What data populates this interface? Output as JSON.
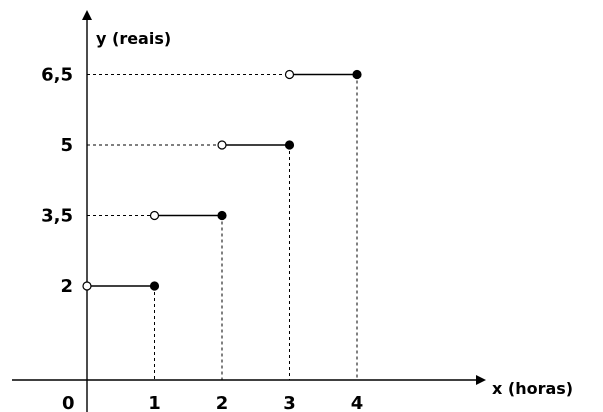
{
  "chart_data": {
    "type": "line",
    "title": "",
    "xlabel": "x (horas)",
    "ylabel": "y (reais)",
    "origin_label": "0",
    "x_ticks": [
      1,
      2,
      3,
      4
    ],
    "y_ticks": [
      "2",
      "3,5",
      "5",
      "6,5"
    ],
    "y_tick_values": [
      2,
      3.5,
      5,
      6.5
    ],
    "xlim": [
      0,
      4
    ],
    "ylim": [
      0,
      6.5
    ],
    "grid": false,
    "segments": [
      {
        "x_start": 0,
        "x_end": 1,
        "y": 2,
        "start": "open",
        "end": "closed"
      },
      {
        "x_start": 1,
        "x_end": 2,
        "y": 3.5,
        "start": "open",
        "end": "closed"
      },
      {
        "x_start": 2,
        "x_end": 3,
        "y": 5,
        "start": "open",
        "end": "closed"
      },
      {
        "x_start": 3,
        "x_end": 4,
        "y": 6.5,
        "start": "open",
        "end": "closed"
      }
    ]
  }
}
